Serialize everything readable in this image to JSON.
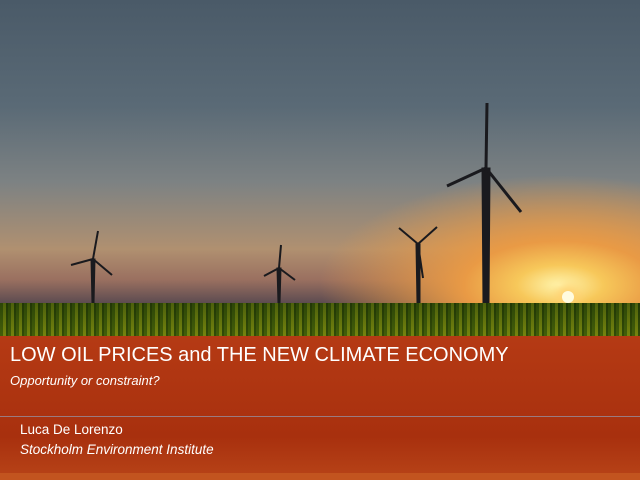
{
  "slide": {
    "title": "LOW OIL PRICES and THE NEW CLIMATE ECONOMY",
    "subtitle": "Opportunity or constraint?",
    "author": "Luca De Lorenzo",
    "organization": "Stockholm Environment Institute"
  },
  "colors": {
    "band": "#b03812",
    "text": "#ffffff"
  }
}
